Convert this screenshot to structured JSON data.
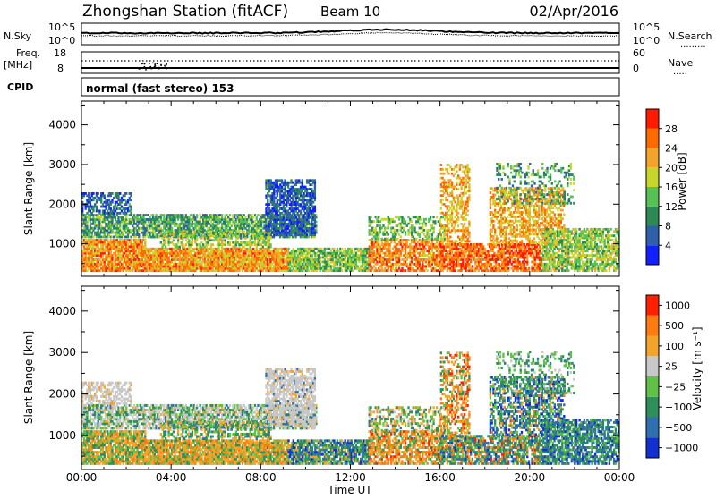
{
  "header": {
    "station": "Zhongshan Station (fitACF)",
    "beam": "Beam 10",
    "date": "02/Apr/2016"
  },
  "noise_panel": {
    "left_label": "N.Sky",
    "right_label": "N.Search",
    "left_ticks": [
      "10^5",
      "10^0"
    ],
    "right_ticks": [
      "10^5",
      "10^0"
    ]
  },
  "freq_panel": {
    "left_label_1": "Freq.",
    "left_label_2": "[MHz]",
    "left_ticks": [
      "18",
      "8"
    ],
    "right_label": "Nave",
    "right_ticks": [
      "60",
      "0"
    ],
    "cpid_label": "CPID",
    "mode_text": "normal (fast stereo) 153"
  },
  "chart_data": [
    {
      "type": "heatmap",
      "name": "power",
      "ylabel": "Slant Range [km]",
      "ytick_labels": [
        "1000",
        "2000",
        "3000",
        "4000"
      ],
      "yticks": [
        1000,
        2000,
        3000,
        4000
      ],
      "ylim": [
        180,
        4600
      ],
      "xlim": [
        0,
        24
      ],
      "colorbar_label": "Power [dB]",
      "colorbar_ticks": [
        "4",
        "8",
        "12",
        "16",
        "20",
        "24",
        "28"
      ],
      "colorbar_values": [
        4,
        8,
        12,
        16,
        20,
        24,
        28
      ],
      "colors": [
        "#1020ff",
        "#2f5fa8",
        "#2e8a55",
        "#57c155",
        "#c8d62a",
        "#f2a52a",
        "#ff6a00",
        "#ff1a00"
      ]
    },
    {
      "type": "heatmap",
      "name": "velocity",
      "ylabel": "Slant Range [km]",
      "ytick_labels": [
        "1000",
        "2000",
        "3000",
        "4000"
      ],
      "yticks": [
        1000,
        2000,
        3000,
        4000
      ],
      "ylim": [
        180,
        4600
      ],
      "xlim": [
        0,
        24
      ],
      "colorbar_label": "Velocity [m s⁻¹]",
      "colorbar_ticks": [
        "1000",
        "500",
        "100",
        "25",
        "−25",
        "−100",
        "−500",
        "−1000"
      ],
      "colors": [
        "#1030d0",
        "#2e6fae",
        "#2f8f5a",
        "#5fc246",
        "#c8c8c8",
        "#f2a52a",
        "#ff7a10",
        "#ff2000"
      ]
    }
  ],
  "time_axis": {
    "ticks": [
      "00:00",
      "04:00",
      "08:00",
      "12:00",
      "16:00",
      "20:00",
      "00:00"
    ],
    "label": "Time UT"
  }
}
